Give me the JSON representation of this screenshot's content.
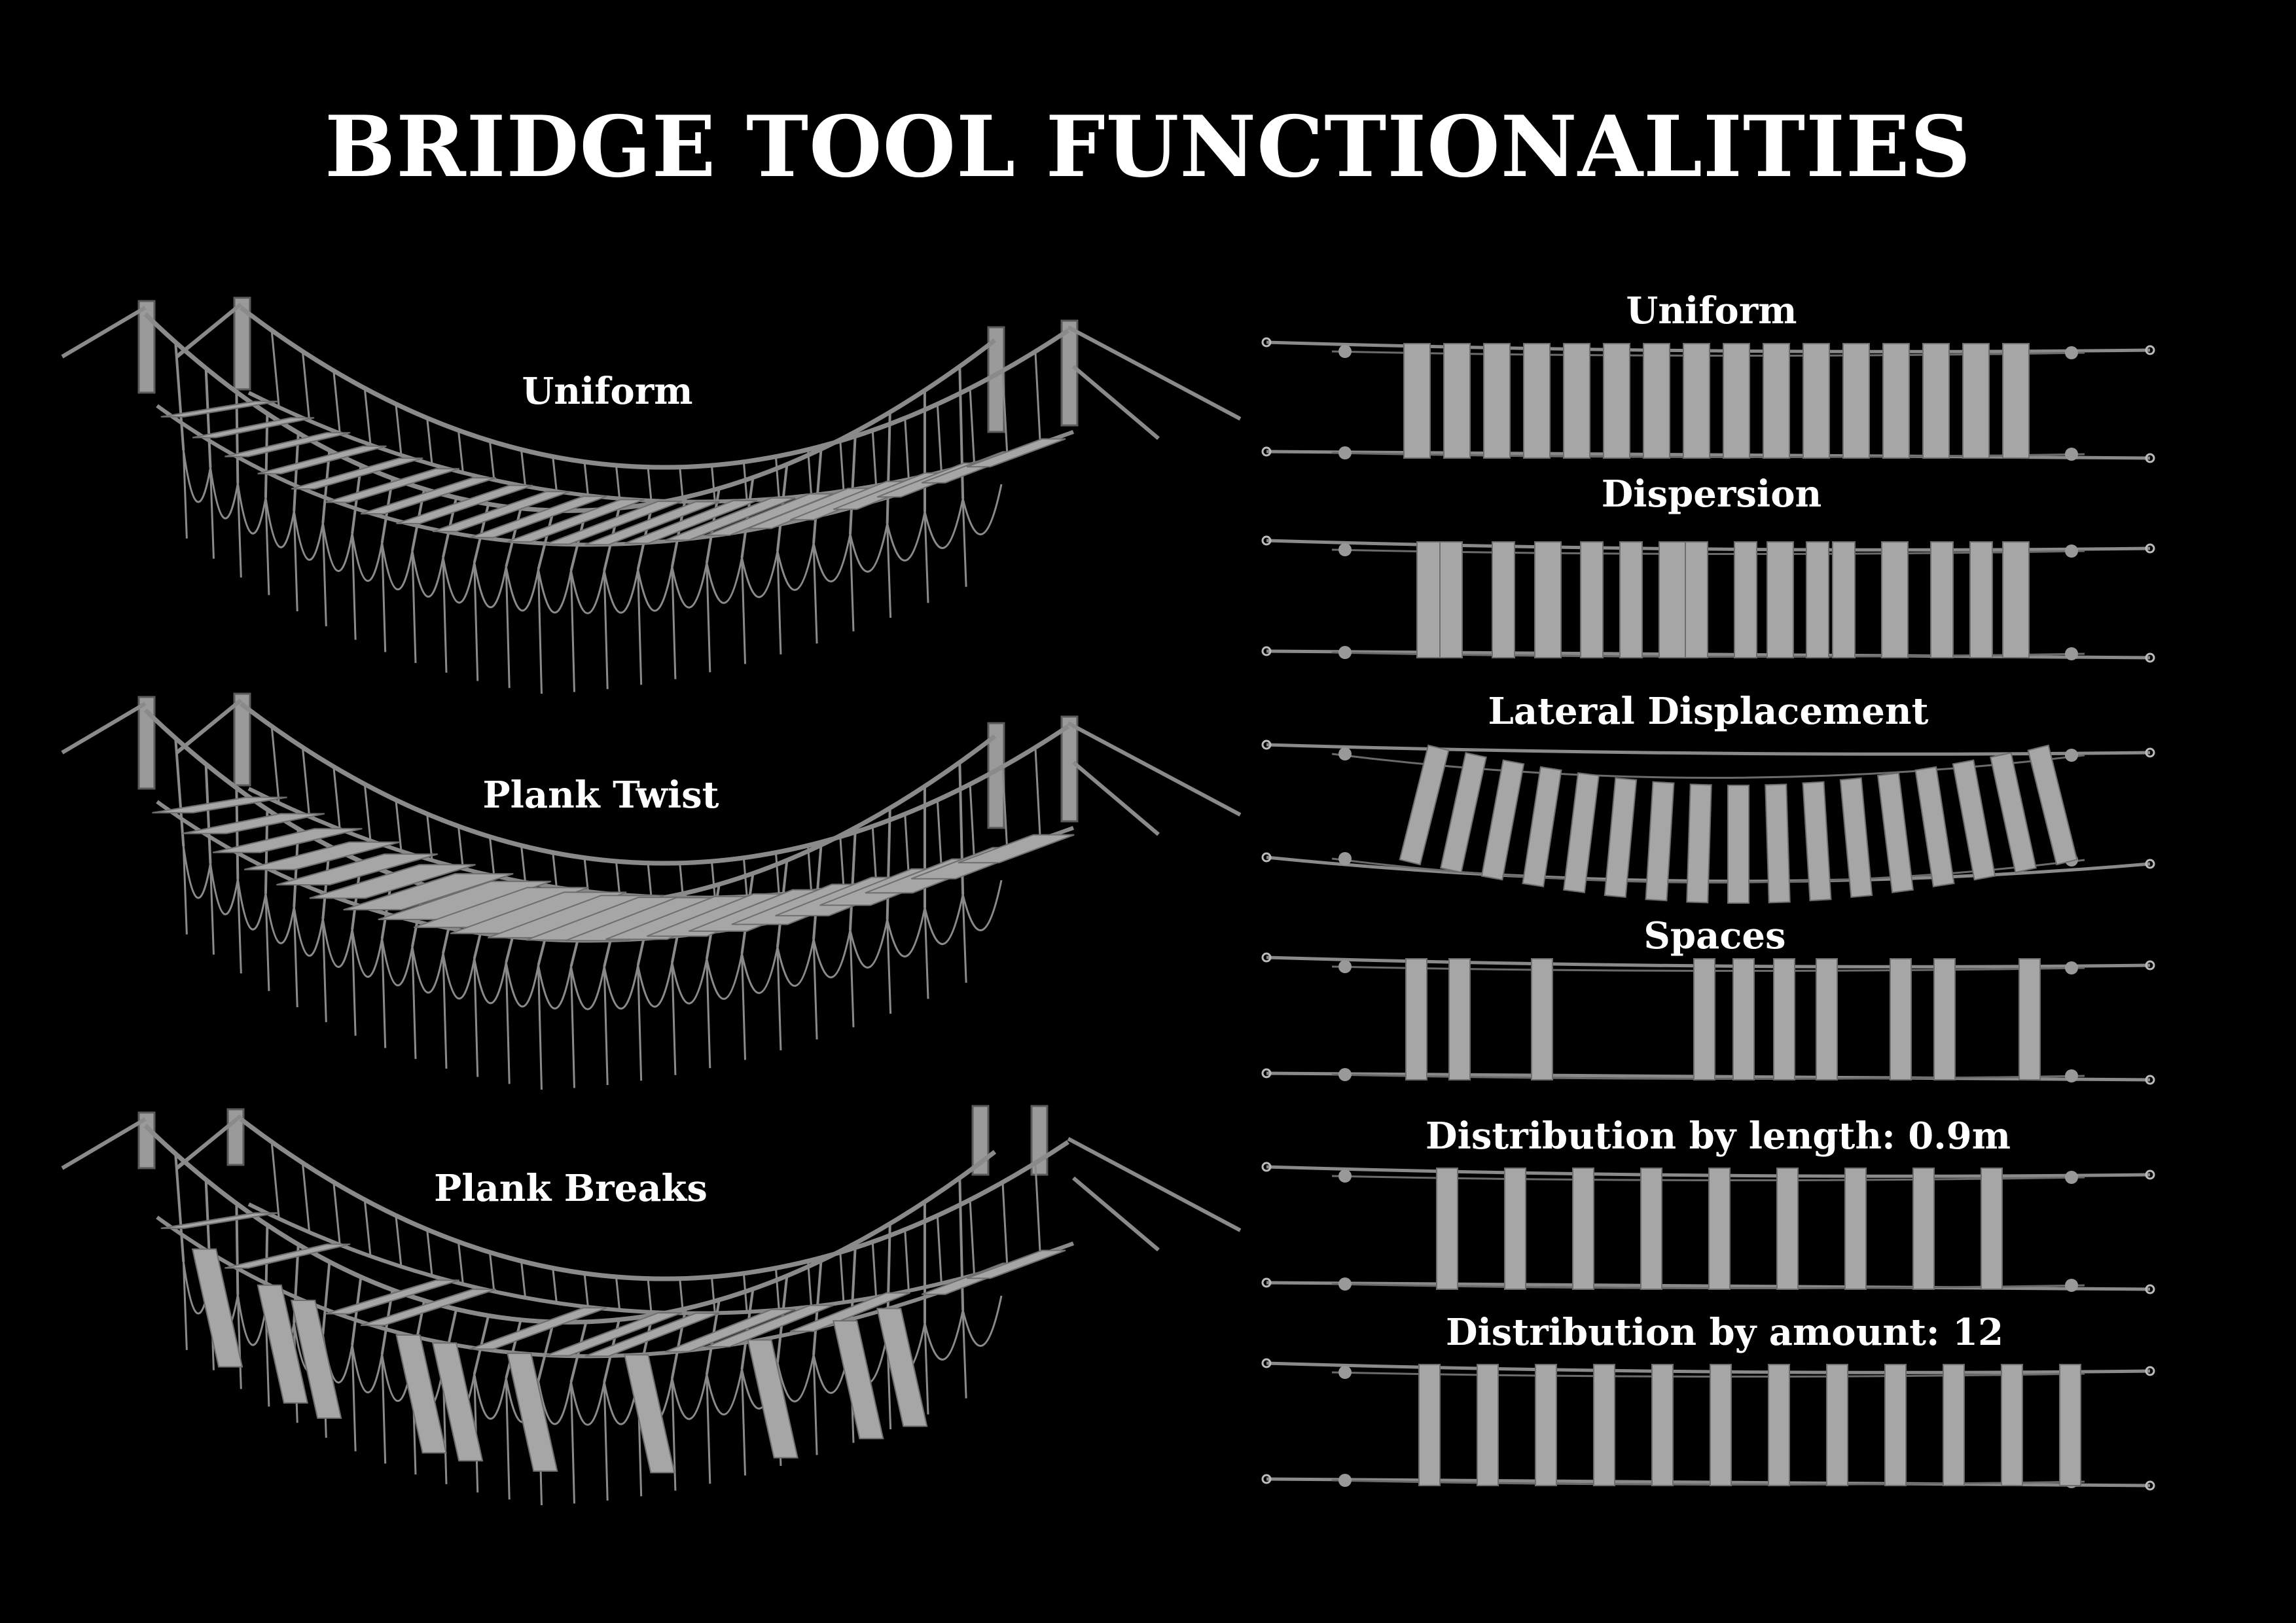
{
  "title": "BRIDGE TOOL FUNCTIONALITIES",
  "perspective_views": [
    {
      "label": "Uniform",
      "mode": "uniform"
    },
    {
      "label": "Plank Twist",
      "mode": "twist"
    },
    {
      "label": "Plank Breaks",
      "mode": "breaks"
    }
  ],
  "top_views": [
    {
      "label": "Uniform",
      "mode": "uniform"
    },
    {
      "label": "Dispersion",
      "mode": "dispersion"
    },
    {
      "label": "Lateral Displacement",
      "mode": "lateral"
    },
    {
      "label": "Spaces",
      "mode": "spaces"
    },
    {
      "label": "Distribution by length: 0.9m",
      "mode": "length"
    },
    {
      "label": "Distribution by amount: 12",
      "mode": "amount",
      "plank_count": 12
    }
  ],
  "colors": {
    "background": "#000000",
    "text": "#ffffff",
    "rope": "#8a8a8a",
    "plank": "#a6a6a6",
    "plank_edge": "#6e6e6e"
  }
}
